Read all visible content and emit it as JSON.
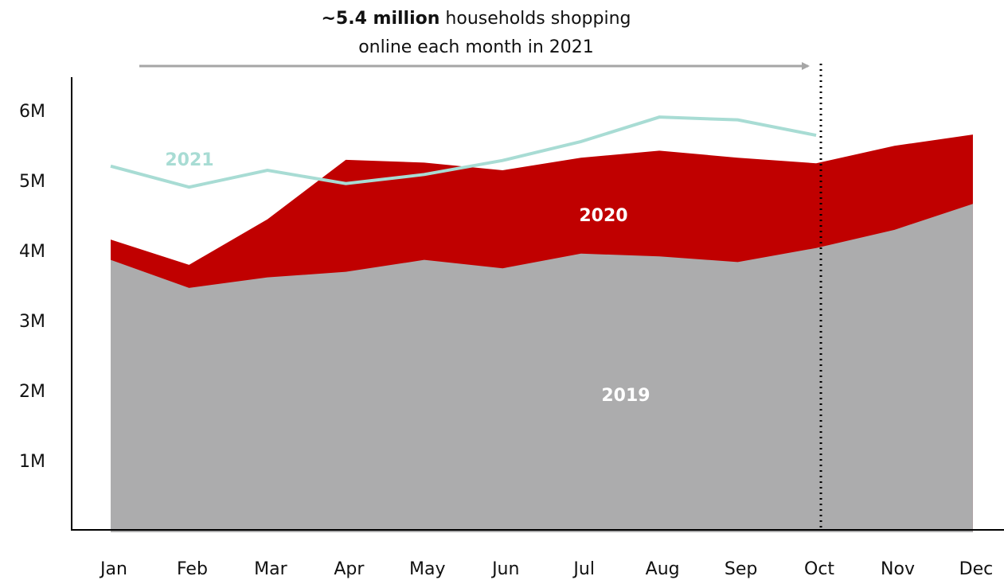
{
  "chart_data": {
    "type": "area",
    "annotation": [
      "~5.4 million",
      " households shopping",
      "online each month in 2021"
    ],
    "categories": [
      "Jan",
      "Feb",
      "Mar",
      "Apr",
      "May",
      "Jun",
      "Jul",
      "Aug",
      "Sep",
      "Oct",
      "Nov",
      "Dec"
    ],
    "ylim": [
      0,
      6.5
    ],
    "yticks": [
      {
        "value": 1,
        "label": "1M"
      },
      {
        "value": 2,
        "label": "2M"
      },
      {
        "value": 3,
        "label": "3M"
      },
      {
        "value": 4,
        "label": "4M"
      },
      {
        "value": 5,
        "label": "5M"
      },
      {
        "value": 6,
        "label": "6M"
      }
    ],
    "series": [
      {
        "name": "2020",
        "type": "area",
        "color": "#c00000",
        "label_color": "#ffffff",
        "values": [
          4.18,
          3.82,
          4.47,
          5.32,
          5.28,
          5.17,
          5.35,
          5.45,
          5.35,
          5.27,
          5.52,
          5.68
        ]
      },
      {
        "name": "2019",
        "type": "area",
        "color": "#acacad",
        "label_color": "#ffffff",
        "values": [
          3.89,
          3.49,
          3.64,
          3.72,
          3.89,
          3.77,
          3.98,
          3.94,
          3.86,
          4.06,
          4.32,
          4.69
        ]
      },
      {
        "name": "2021",
        "type": "line",
        "color": "#a8dcd4",
        "label_color": "#a8dcd4",
        "values": [
          5.23,
          4.93,
          5.17,
          4.98,
          5.11,
          5.31,
          5.58,
          5.93,
          5.89,
          5.67,
          null,
          null
        ]
      }
    ]
  }
}
